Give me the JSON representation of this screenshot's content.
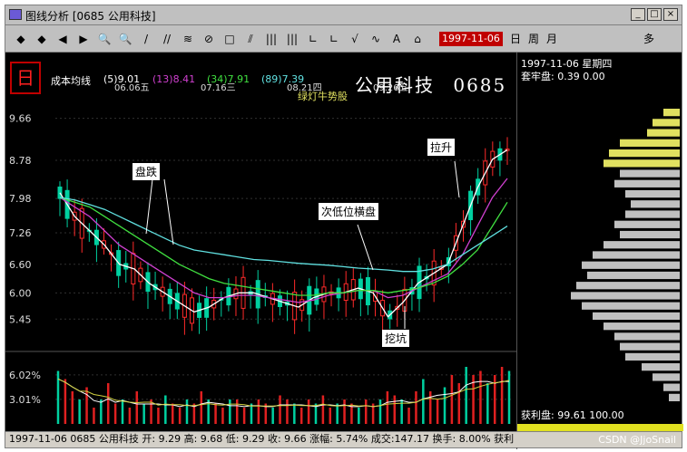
{
  "window": {
    "title": "图线分析 [0685 公用科技]",
    "buttons": [
      "_",
      "□",
      "×"
    ]
  },
  "toolbar": {
    "tools": [
      "◆",
      "◆",
      "◀",
      "▶",
      "🔍",
      "🔍",
      "/",
      "//",
      "≋",
      "⊘",
      "□",
      "⫽",
      "|||",
      "|||",
      "∟",
      "∟",
      "√",
      "∿",
      "A",
      "⌂"
    ],
    "date": "1997-11-06",
    "periods": [
      "日",
      "周",
      "月"
    ],
    "more": "多"
  },
  "chart_header": {
    "label": "成本均线",
    "ma5": "(5)9.01",
    "ma13": "(13)8.41",
    "ma34": "(34)7.91",
    "ma89": "(89)7.39",
    "subtitle": "绿灯牛势股",
    "stock_name": "公用科技",
    "stock_code": "0685",
    "logo": "日"
  },
  "colors": {
    "up": "#ff2a2a",
    "down": "#00d0a0",
    "ma5": "#ffffff",
    "ma13": "#d040d0",
    "ma34": "#40e040",
    "ma89": "#60e0e0",
    "volume": "#e02020",
    "annot_bg": "#ffffff"
  },
  "chart_data": [
    {
      "type": "line",
      "title": "",
      "y_ticks": [
        "9.66",
        "8.78",
        "7.98",
        "7.26",
        "6.60",
        "6.00",
        "5.45"
      ],
      "x_ticks": [
        "06.06五",
        "07.16三",
        "08.21四",
        "09.26五"
      ],
      "ylim": [
        5.0,
        9.9
      ],
      "series": [
        {
          "name": "(5)9.01",
          "values": [
            8.1,
            7.6,
            7.3,
            7.0,
            6.6,
            6.5,
            6.2,
            6.0,
            5.8,
            5.6,
            5.7,
            5.9,
            6.0,
            6.0,
            5.9,
            5.8,
            5.7,
            5.9,
            6.0,
            6.0,
            6.1,
            6.0,
            5.5,
            5.8,
            6.2,
            6.4,
            6.6,
            7.4,
            8.2,
            8.8,
            9.0
          ]
        },
        {
          "name": "(13)8.41",
          "values": [
            8.0,
            7.8,
            7.6,
            7.3,
            7.0,
            6.8,
            6.6,
            6.4,
            6.2,
            6.0,
            5.9,
            5.9,
            5.95,
            5.95,
            5.9,
            5.85,
            5.8,
            5.85,
            5.95,
            6.0,
            6.05,
            6.05,
            5.9,
            5.95,
            6.1,
            6.25,
            6.4,
            6.8,
            7.4,
            8.0,
            8.4
          ]
        },
        {
          "name": "(34)7.91",
          "values": [
            8.0,
            7.9,
            7.8,
            7.6,
            7.4,
            7.2,
            7.0,
            6.8,
            6.6,
            6.45,
            6.3,
            6.2,
            6.15,
            6.1,
            6.05,
            6.0,
            5.95,
            5.95,
            6.0,
            6.0,
            6.05,
            6.05,
            6.0,
            6.05,
            6.1,
            6.2,
            6.35,
            6.6,
            6.9,
            7.4,
            7.9
          ]
        },
        {
          "name": "(89)7.39",
          "values": [
            8.0,
            7.95,
            7.85,
            7.75,
            7.6,
            7.45,
            7.3,
            7.15,
            7.0,
            6.9,
            6.85,
            6.8,
            6.75,
            6.7,
            6.68,
            6.65,
            6.62,
            6.6,
            6.58,
            6.55,
            6.52,
            6.5,
            6.48,
            6.45,
            6.45,
            6.5,
            6.6,
            6.8,
            7.0,
            7.2,
            7.4
          ]
        }
      ]
    },
    {
      "type": "bar",
      "title": "",
      "y_ticks": [
        "6.02%",
        "3.01%"
      ],
      "ylim": [
        0,
        8
      ],
      "values": [
        6.5,
        5.5,
        4,
        3,
        4.5,
        2,
        3,
        5,
        2.5,
        3,
        2,
        4,
        2.5,
        3,
        2,
        3.5,
        2.5,
        2,
        3,
        2.5,
        4,
        3,
        2.5,
        2,
        3,
        3,
        2,
        2.5,
        3,
        2.5,
        2,
        3.5,
        3,
        2.5,
        2,
        3,
        2.5,
        3.5,
        2,
        2.5,
        3,
        2.5,
        2,
        3,
        2.5,
        3,
        4,
        3.5,
        3,
        2,
        4,
        5.5,
        4,
        3,
        4.5,
        6,
        5,
        7,
        6,
        6.5,
        5,
        6,
        7,
        6.5
      ]
    }
  ],
  "annotations": {
    "dip": "盘跌",
    "flat": "次低位横盘",
    "pit": "挖坑",
    "rise": "拉升"
  },
  "right_panel": {
    "date_line": "1997-11-06 星期四",
    "half_line": "套牢盘: 0.39 0.00",
    "profit_line": "获利盘: 99.61 100.00",
    "profile": [
      {
        "v": 0.15,
        "c": "#e0e060"
      },
      {
        "v": 0.25,
        "c": "#e0e060"
      },
      {
        "v": 0.3,
        "c": "#e0e060"
      },
      {
        "v": 0.55,
        "c": "#e0e060"
      },
      {
        "v": 0.65,
        "c": "#e0e060"
      },
      {
        "v": 0.7,
        "c": "#e0e060"
      },
      {
        "v": 0.55,
        "c": "#c0c0c0"
      },
      {
        "v": 0.6,
        "c": "#c0c0c0"
      },
      {
        "v": 0.5,
        "c": "#c0c0c0"
      },
      {
        "v": 0.45,
        "c": "#c0c0c0"
      },
      {
        "v": 0.5,
        "c": "#c0c0c0"
      },
      {
        "v": 0.6,
        "c": "#c0c0c0"
      },
      {
        "v": 0.55,
        "c": "#c0c0c0"
      },
      {
        "v": 0.7,
        "c": "#c0c0c0"
      },
      {
        "v": 0.8,
        "c": "#c0c0c0"
      },
      {
        "v": 0.9,
        "c": "#c0c0c0"
      },
      {
        "v": 0.85,
        "c": "#c0c0c0"
      },
      {
        "v": 0.95,
        "c": "#c0c0c0"
      },
      {
        "v": 1.0,
        "c": "#c0c0c0"
      },
      {
        "v": 0.9,
        "c": "#c0c0c0"
      },
      {
        "v": 0.8,
        "c": "#c0c0c0"
      },
      {
        "v": 0.7,
        "c": "#c0c0c0"
      },
      {
        "v": 0.6,
        "c": "#c0c0c0"
      },
      {
        "v": 0.55,
        "c": "#c0c0c0"
      },
      {
        "v": 0.5,
        "c": "#c0c0c0"
      },
      {
        "v": 0.35,
        "c": "#c0c0c0"
      },
      {
        "v": 0.25,
        "c": "#c0c0c0"
      },
      {
        "v": 0.15,
        "c": "#c0c0c0"
      },
      {
        "v": 0.1,
        "c": "#c0c0c0"
      }
    ]
  },
  "status": {
    "text": "1997-11-06  0685  公用科技  开: 9.29  高: 9.68  低: 9.29  收: 9.66  涨幅: 5.74%  成交:147.17  换手: 8.00%  获利",
    "watermark": "CSDN @JjoSnail"
  }
}
